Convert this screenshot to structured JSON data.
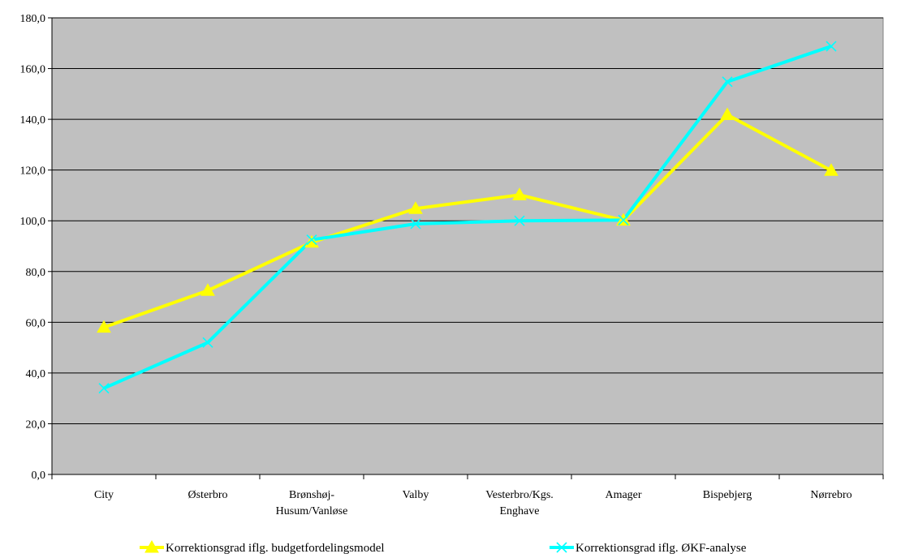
{
  "chart_data": {
    "type": "line",
    "categories": [
      "City",
      "Østerbro",
      "Brønshøj-Husum/Vanløse",
      "Valby",
      "Vesterbro/Kgs. Enghave",
      "Amager",
      "Bispebjerg",
      "Nørrebro"
    ],
    "category_lines": [
      [
        "City"
      ],
      [
        "Østerbro"
      ],
      [
        "Brønshøj-",
        "Husum/Vanløse"
      ],
      [
        "Valby"
      ],
      [
        "Vesterbro/Kgs.",
        "Enghave"
      ],
      [
        "Amager"
      ],
      [
        "Bispebjerg"
      ],
      [
        "Nørrebro"
      ]
    ],
    "ylim": [
      0,
      180
    ],
    "yticks": [
      "0,0",
      "20,0",
      "40,0",
      "60,0",
      "80,0",
      "100,0",
      "120,0",
      "140,0",
      "160,0",
      "180,0"
    ],
    "grid": true,
    "plot_background": "#c0c0c0",
    "legend_position": "bottom",
    "series": [
      {
        "name": "Korrektionsgrad iflg. budgetfordelingsmodel",
        "color": "#ffff00",
        "marker": "triangle",
        "values": [
          58,
          72.5,
          91.5,
          104.8,
          110.2,
          100.2,
          141.8,
          119.8
        ]
      },
      {
        "name": "Korrektionsgrad iflg. ØKF-analyse",
        "color": "#00ffff",
        "marker": "x",
        "values": [
          34,
          52,
          92.5,
          98.8,
          100,
          100.3,
          154.8,
          168.8
        ]
      }
    ]
  }
}
